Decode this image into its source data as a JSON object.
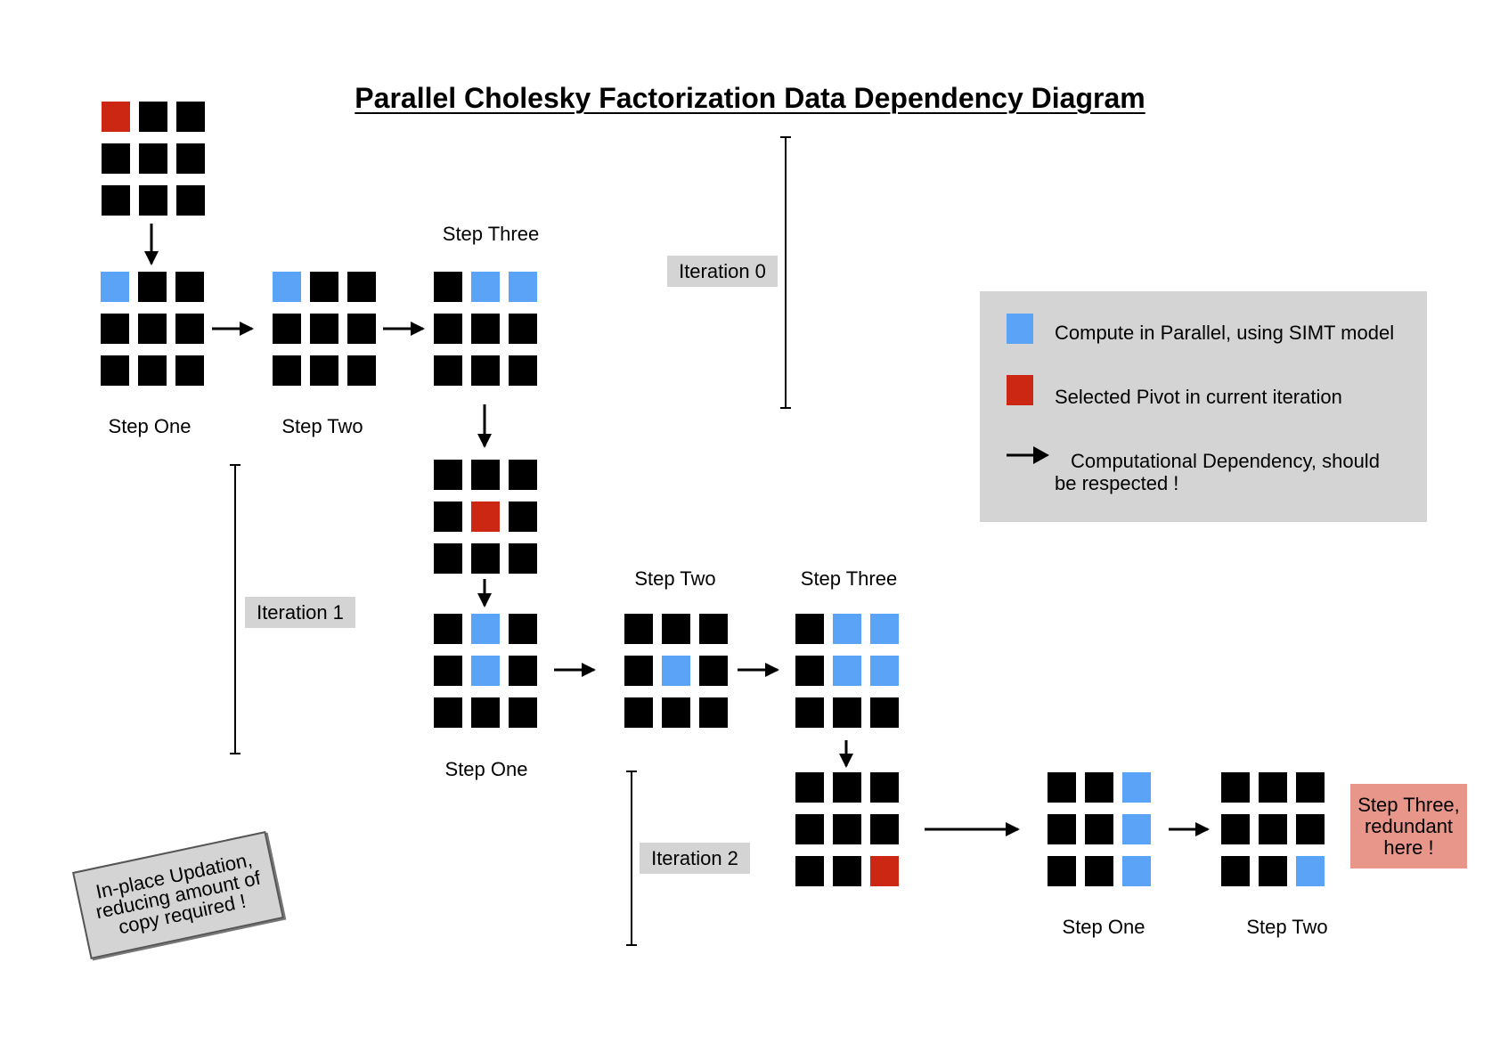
{
  "title": "Parallel Cholesky Factorization Data Dependency Diagram",
  "colors": {
    "black": "#000000",
    "parallel": "#5ba3f7",
    "pivot": "#cc2712",
    "legend_bg": "#d4d4d4",
    "redundant_bg": "#e8968a"
  },
  "iterations": {
    "iter0": "Iteration 0",
    "iter1": "Iteration 1",
    "iter2": "Iteration 2"
  },
  "steps": {
    "i0_one": "Step One",
    "i0_two": "Step Two",
    "i0_three": "Step Three",
    "i1_one": "Step One",
    "i1_two": "Step Two",
    "i1_three": "Step Three",
    "i2_one": "Step One",
    "i2_two": "Step Two"
  },
  "legend": {
    "parallel": "Compute in Parallel, using SIMT model",
    "pivot": "Selected Pivot in current iteration",
    "dependency": "Computational Dependency, should be respected !"
  },
  "note": "In-place Updation, reducing amount of copy required !",
  "redundant": "Step Three, redundant here !",
  "grids": {
    "g0_pivot": [
      "R",
      "K",
      "K",
      "K",
      "K",
      "K",
      "K",
      "K",
      "K"
    ],
    "g0_one": [
      "B",
      "K",
      "K",
      "K",
      "K",
      "K",
      "K",
      "K",
      "K"
    ],
    "g0_two": [
      "B",
      "K",
      "K",
      "K",
      "K",
      "K",
      "K",
      "K",
      "K"
    ],
    "g0_three": [
      "K",
      "B",
      "B",
      "K",
      "K",
      "K",
      "K",
      "K",
      "K"
    ],
    "g1_pivot": [
      "K",
      "K",
      "K",
      "K",
      "R",
      "K",
      "K",
      "K",
      "K"
    ],
    "g1_one": [
      "K",
      "B",
      "K",
      "K",
      "B",
      "K",
      "K",
      "K",
      "K"
    ],
    "g1_two": [
      "K",
      "K",
      "K",
      "K",
      "B",
      "K",
      "K",
      "K",
      "K"
    ],
    "g1_three": [
      "K",
      "B",
      "B",
      "K",
      "B",
      "B",
      "K",
      "K",
      "K"
    ],
    "g2_pivot": [
      "K",
      "K",
      "K",
      "K",
      "K",
      "K",
      "K",
      "K",
      "R"
    ],
    "g2_one": [
      "K",
      "K",
      "B",
      "K",
      "K",
      "B",
      "K",
      "K",
      "B"
    ],
    "g2_two": [
      "K",
      "K",
      "K",
      "K",
      "K",
      "K",
      "K",
      "K",
      "B"
    ]
  }
}
